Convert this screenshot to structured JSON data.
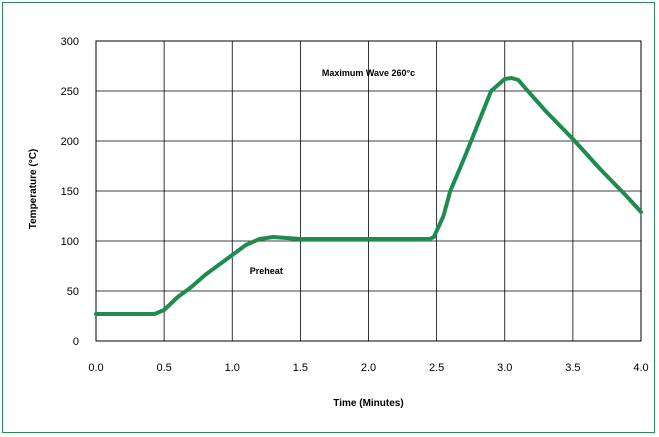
{
  "chart_data": {
    "type": "line",
    "title": "",
    "xlabel": "Time (Minutes)",
    "ylabel": "Temperature  (°C)",
    "xlim": [
      0.0,
      4.0
    ],
    "ylim": [
      0,
      300
    ],
    "x_ticks": [
      "0.0",
      "0.5",
      "1.0",
      "1.5",
      "2.0",
      "2.5",
      "3.0",
      "3.5",
      "4.0"
    ],
    "y_ticks": [
      "0",
      "50",
      "100",
      "150",
      "200",
      "250",
      "300"
    ],
    "grid": true,
    "line_color": "#1e8c4e",
    "series": [
      {
        "x": [
          0.0,
          0.2,
          0.43,
          0.5,
          0.6,
          0.7,
          0.8,
          0.9,
          1.0,
          1.1,
          1.2,
          1.3,
          1.4,
          1.5,
          2.0,
          2.45,
          2.48,
          2.55,
          2.6,
          2.7,
          2.8,
          2.9,
          3.0,
          3.05,
          3.1,
          3.15,
          3.3,
          3.5,
          3.7,
          3.9,
          4.0
        ],
        "y": [
          27,
          27,
          27,
          31,
          44,
          54,
          66,
          76,
          86,
          96,
          102,
          104,
          103,
          102,
          102,
          102,
          104,
          125,
          150,
          182,
          216,
          250,
          262,
          263,
          261,
          253,
          230,
          202,
          172,
          144,
          129
        ]
      }
    ],
    "annotations": [
      {
        "text": "Maximum Wave 260°c",
        "x": 2.0,
        "y": 265
      },
      {
        "text": "Preheat",
        "x": 1.25,
        "y": 67
      }
    ]
  }
}
